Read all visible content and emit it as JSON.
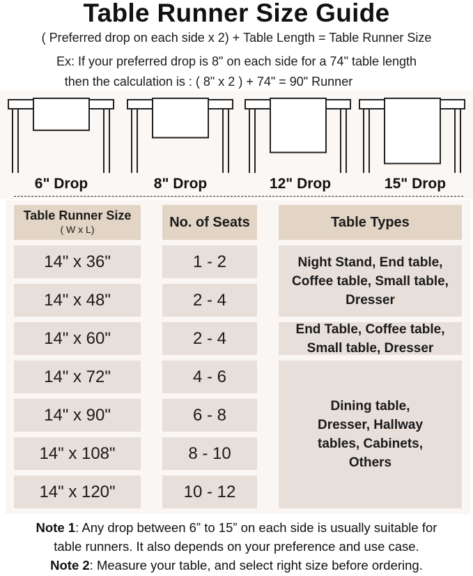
{
  "title": "Table Runner Size Guide",
  "formula": "( Preferred drop on each side x 2) + Table Length = Table Runner Size",
  "example_line1": "Ex: If your preferred drop is 8\" on each side for a 74\" table length",
  "example_line2": "then the calculation is : ( 8\" x 2 ) + 74\" = 90\" Runner",
  "drops": [
    {
      "label": "6\" Drop",
      "inches": 6
    },
    {
      "label": "8\" Drop",
      "inches": 8
    },
    {
      "label": "12\" Drop",
      "inches": 12
    },
    {
      "label": "15\" Drop",
      "inches": 15
    }
  ],
  "table": {
    "headers": {
      "size": "Table Runner Size",
      "size_sub": "( W x L)",
      "seats": "No. of Seats",
      "types": "Table Types"
    },
    "rows": [
      {
        "size": "14\" x 36\"",
        "seats": "1 - 2"
      },
      {
        "size": "14\" x 48\"",
        "seats": "2 - 4"
      },
      {
        "size": "14\" x 60\"",
        "seats": "2 - 4"
      },
      {
        "size": "14\" x 72\"",
        "seats": "4 - 6"
      },
      {
        "size": "14\" x 90\"",
        "seats": "6 - 8"
      },
      {
        "size": "14\" x 108\"",
        "seats": "8 - 10"
      },
      {
        "size": "14\" x 120\"",
        "seats": "10 - 12"
      }
    ],
    "types": [
      "Night Stand, End table, Coffee table, Small table, Dresser",
      "End Table, Coffee table, Small table, Dresser",
      "Dining table, Dresser, Hallway tables, Cabinets, Others"
    ]
  },
  "notes": [
    {
      "label": "Note 1",
      "text": ": Any drop between 6” to 15” on each side is usually suitable for",
      "text2": "table runners. It also depends on your preference and use case."
    },
    {
      "label": "Note 2",
      "text": ": Measure your table, and select right size before ordering."
    }
  ],
  "colors": {
    "header_cell": "#e3d5c6",
    "data_cell": "#e6dfda",
    "panel": "#faf6f3"
  }
}
